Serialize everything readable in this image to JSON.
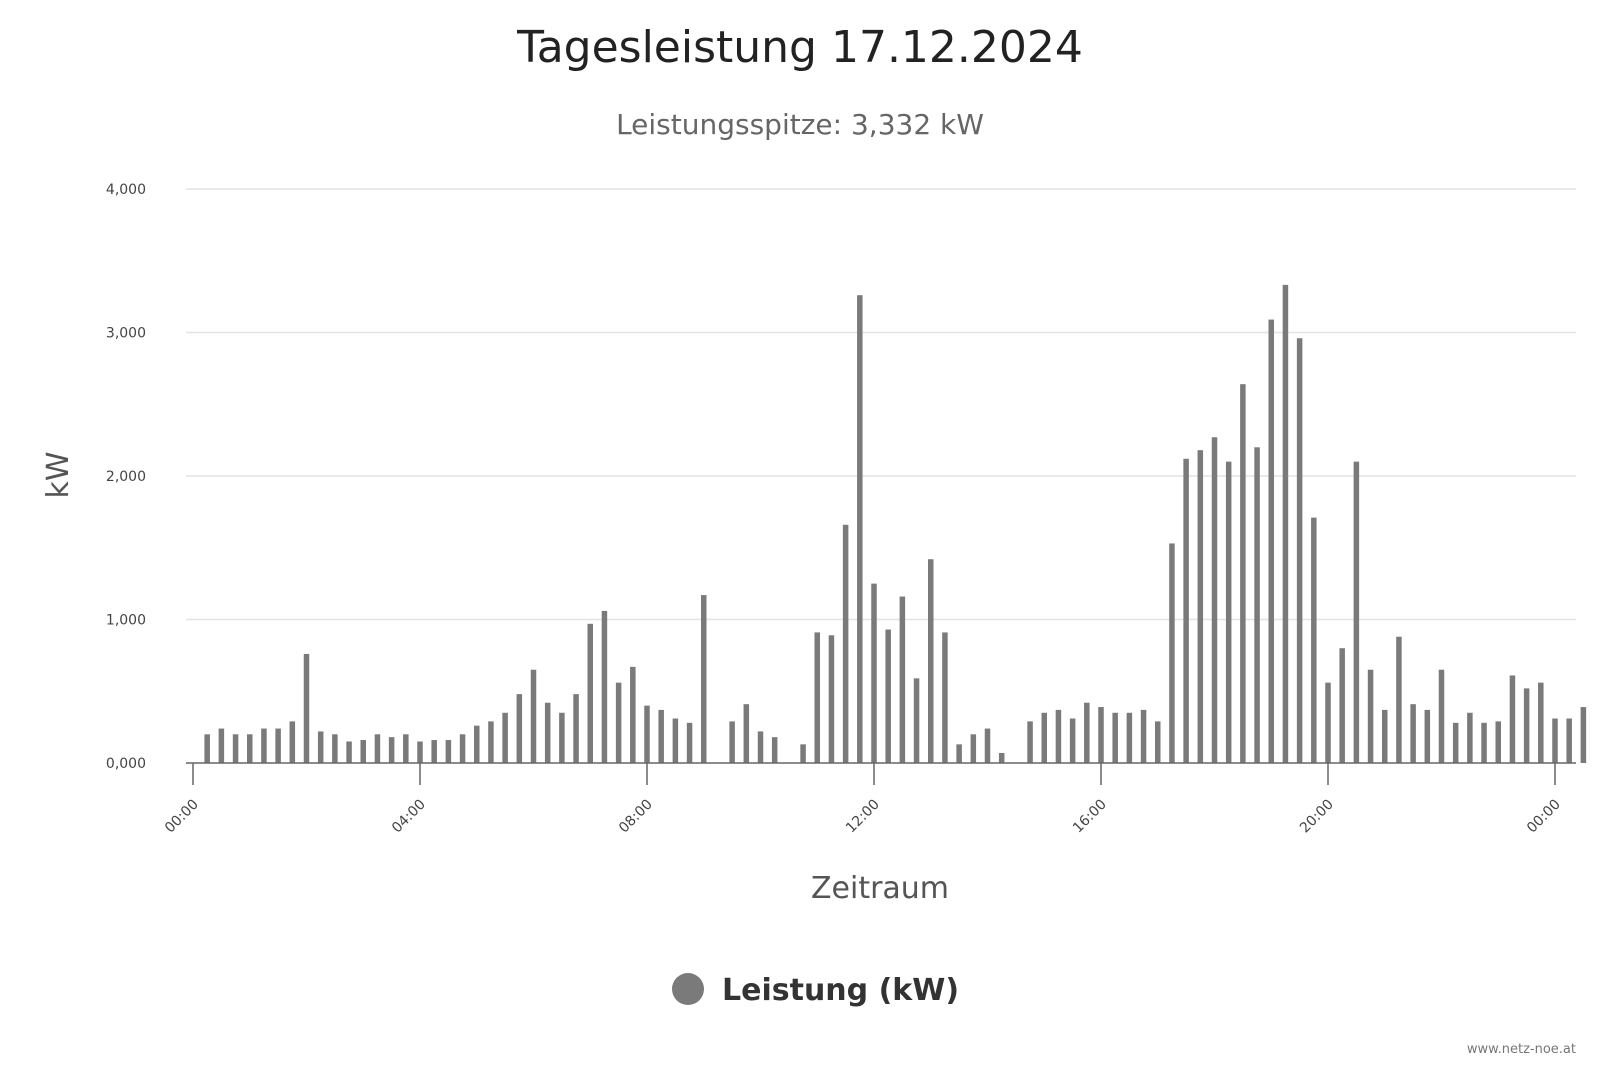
{
  "chart_data": {
    "type": "bar",
    "title": "Tagesleistung 17.12.2024",
    "subtitle": "Leistungsspitze: 3,332 kW",
    "xlabel": "Zeitraum",
    "ylabel": "kW",
    "ylim": [
      0,
      4000
    ],
    "yticks": [
      {
        "value": 0,
        "label": "0,000"
      },
      {
        "value": 1000,
        "label": "1,000"
      },
      {
        "value": 2000,
        "label": "2,000"
      },
      {
        "value": 3000,
        "label": "3,000"
      },
      {
        "value": 4000,
        "label": "4,000"
      }
    ],
    "xticks": [
      {
        "hour": 0,
        "label": "00:00"
      },
      {
        "hour": 4,
        "label": "04:00"
      },
      {
        "hour": 8,
        "label": "08:00"
      },
      {
        "hour": 12,
        "label": "12:00"
      },
      {
        "hour": 16,
        "label": "16:00"
      },
      {
        "hour": 20,
        "label": "20:00"
      },
      {
        "hour": 24,
        "label": "00:00"
      }
    ],
    "interval_minutes": 15,
    "grid": true,
    "legend_position": "bottom-center",
    "series": [
      {
        "name": "Leistung (kW)",
        "color": "#7a7a7a",
        "values": [
          0,
          200,
          240,
          200,
          200,
          240,
          240,
          290,
          760,
          220,
          200,
          150,
          160,
          200,
          180,
          200,
          150,
          160,
          160,
          200,
          260,
          290,
          350,
          480,
          650,
          420,
          350,
          480,
          970,
          1060,
          560,
          670,
          400,
          370,
          310,
          280,
          1170,
          0,
          290,
          410,
          220,
          180,
          0,
          130,
          910,
          890,
          1660,
          3260,
          1250,
          930,
          1160,
          590,
          1420,
          910,
          130,
          200,
          240,
          70,
          0,
          290,
          350,
          370,
          310,
          420,
          390,
          350,
          350,
          370,
          290,
          1530,
          2120,
          2180,
          2270,
          2100,
          2640,
          2200,
          3090,
          3332,
          2960,
          1710,
          560,
          800,
          2100,
          650,
          370,
          880,
          410,
          370,
          650,
          280,
          350,
          280,
          290,
          610,
          520,
          560,
          310,
          310,
          390
        ]
      }
    ]
  },
  "footer": {
    "credit": "www.netz-noe.at"
  }
}
